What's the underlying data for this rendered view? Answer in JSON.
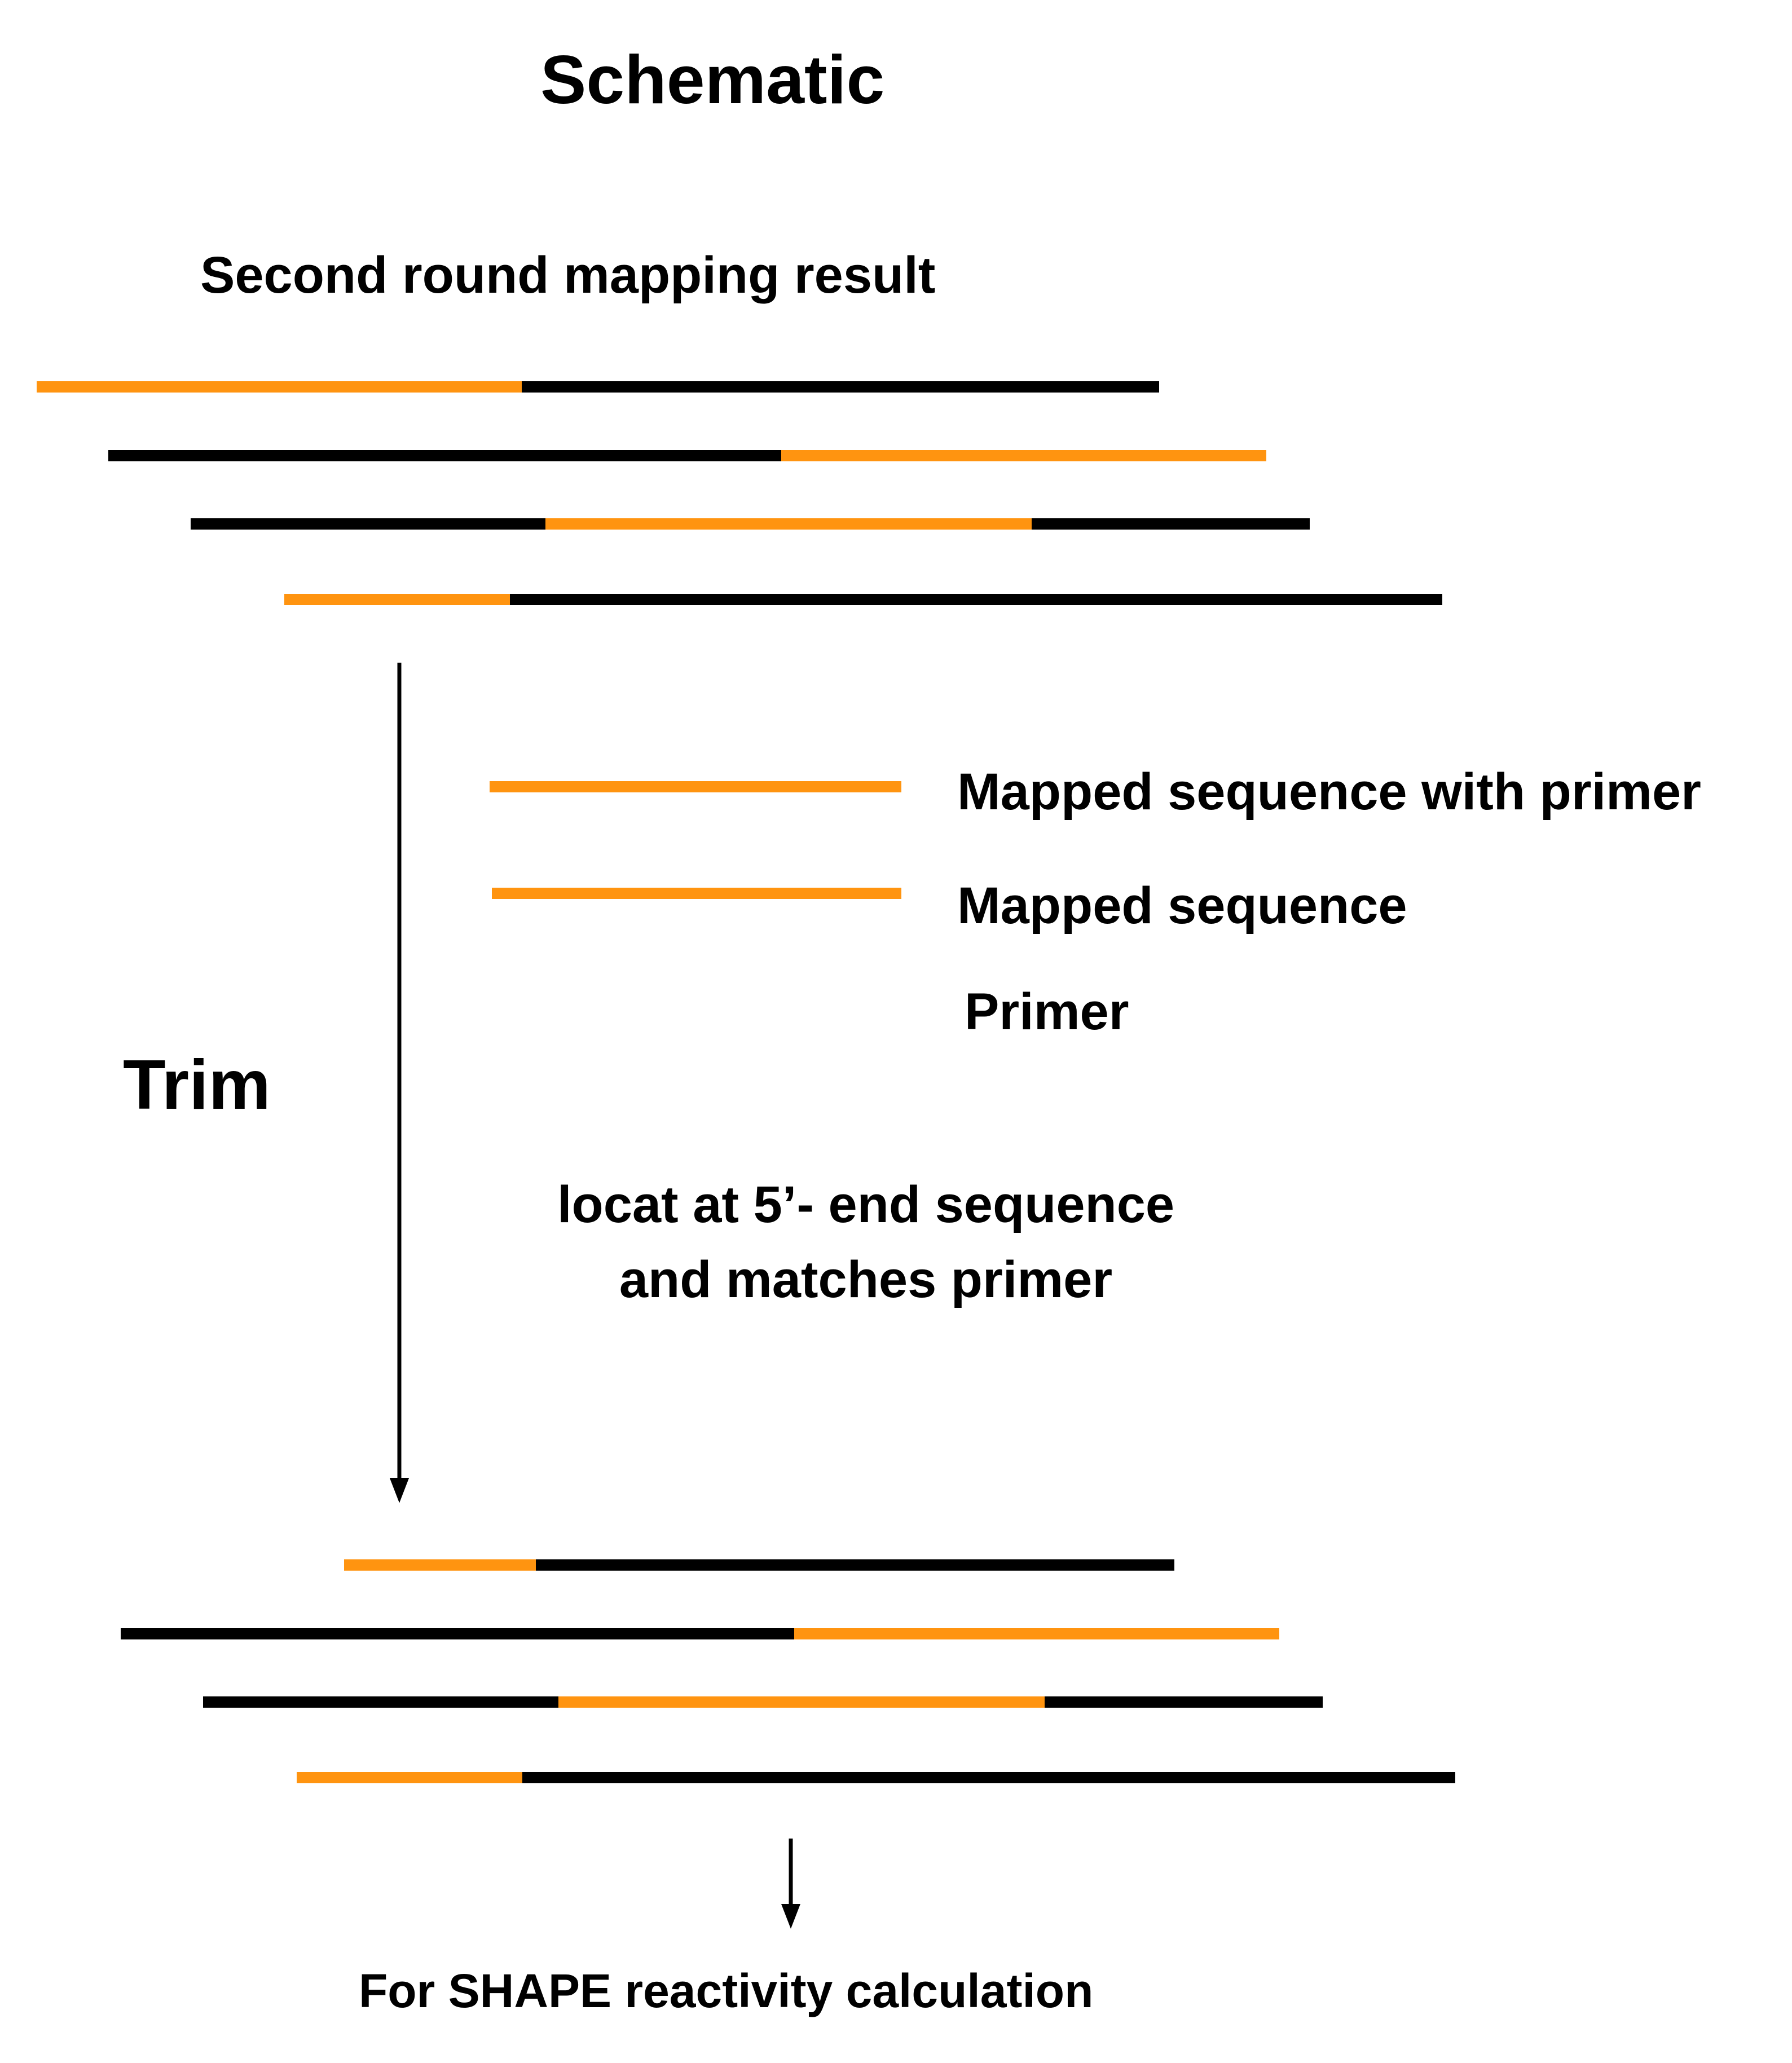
{
  "title": "Schematic",
  "top_section": {
    "heading": "Second round mapping result"
  },
  "legend": {
    "mapped_with_primer": "Mapped sequence with primer",
    "mapped_sequence": "Mapped sequence",
    "primer": "Primer"
  },
  "trim": {
    "label": "Trim",
    "note_line1": "locat at 5’- end sequence",
    "note_line2": "and matches primer"
  },
  "bottom_section": {
    "footer": "For SHAPE reactivity calculation"
  },
  "colors": {
    "read": "#000000",
    "mapped": "#FF9410",
    "primer": "#EC5BAA"
  }
}
